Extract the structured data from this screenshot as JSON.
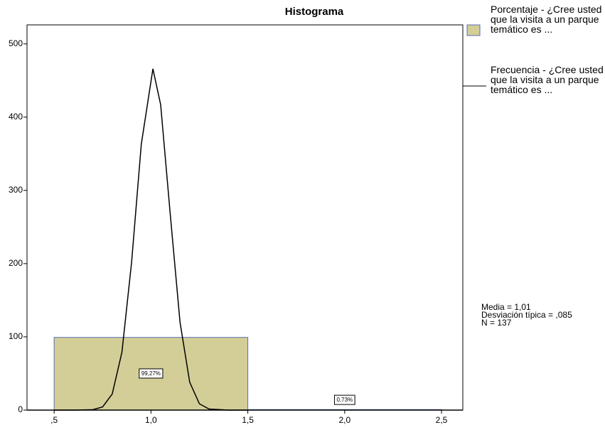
{
  "chart_data": {
    "type": "histogram",
    "title": "Histograma",
    "bins": [
      0.5,
      1.5,
      2.5
    ],
    "series": [
      {
        "name": "Porcentaje - ¿Cree usted que la visita a un parque temático es ...",
        "color": "#d3ce97",
        "values": [
          99.27,
          0.73
        ],
        "value_labels": [
          "99,27%",
          "0,73%"
        ]
      }
    ],
    "curve": {
      "name": "Frecuencia - ¿Cree usted que la visita a un parque temático es ...",
      "color": "#000000",
      "x": [
        0.5,
        0.6,
        0.7,
        0.75,
        0.8,
        0.85,
        0.9,
        0.95,
        1.01,
        1.05,
        1.1,
        1.15,
        1.2,
        1.25,
        1.3,
        1.4,
        1.5
      ],
      "values": [
        0,
        0,
        0.6,
        4.3,
        22,
        79,
        202,
        363,
        466,
        417,
        266,
        120,
        38,
        8.6,
        1.4,
        0,
        0
      ]
    },
    "xlim": [
      0.36,
      2.61
    ],
    "ylim": [
      0,
      526
    ],
    "xticks": [
      {
        "value": 0.5,
        "label": ",5"
      },
      {
        "value": 1,
        "label": "1,0"
      },
      {
        "value": 1.5,
        "label": "1,5"
      },
      {
        "value": 2,
        "label": "2,0"
      },
      {
        "value": 2.5,
        "label": "2,5"
      }
    ],
    "yticks": [
      0,
      100,
      200,
      300,
      400,
      500
    ],
    "annotations": [
      "Media = 1,01",
      "Desviación típica = ,085",
      "N = 137"
    ]
  }
}
